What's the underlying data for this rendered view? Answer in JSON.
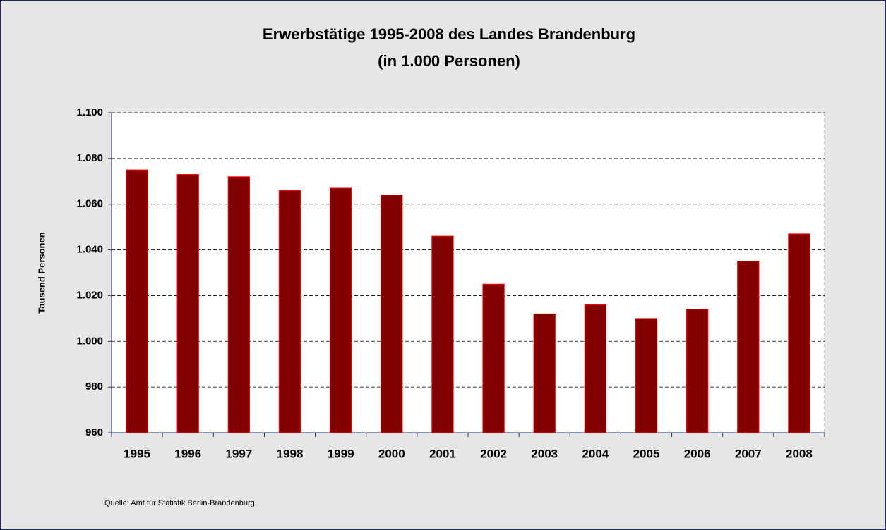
{
  "chart_data": {
    "type": "bar",
    "title": "Erwerbstätige 1995-2008 des Landes Brandenburg",
    "subtitle": "(in 1.000 Personen)",
    "y_label": "Tausend Personen",
    "source": "Quelle: Amt für Statistik Berlin-Brandenburg.",
    "categories": [
      "1995",
      "1996",
      "1997",
      "1998",
      "1999",
      "2000",
      "2001",
      "2002",
      "2003",
      "2004",
      "2005",
      "2006",
      "2007",
      "2008"
    ],
    "values": [
      1075,
      1073,
      1072,
      1066,
      1067,
      1064,
      1046,
      1025,
      1012,
      1016,
      1010,
      1014,
      1035,
      1047
    ],
    "color": "#800000",
    "ylim": [
      960,
      1100
    ],
    "yticks": [
      960,
      980,
      {
        "value": 1000,
        "label": "1.000"
      },
      {
        "value": 1020,
        "label": "1.020"
      },
      {
        "value": 1040,
        "label": "1.040"
      },
      {
        "value": 1060,
        "label": "1.060"
      },
      {
        "value": 1080,
        "label": "1.080"
      },
      {
        "value": 1100,
        "label": "1.100"
      }
    ],
    "grid": true
  }
}
